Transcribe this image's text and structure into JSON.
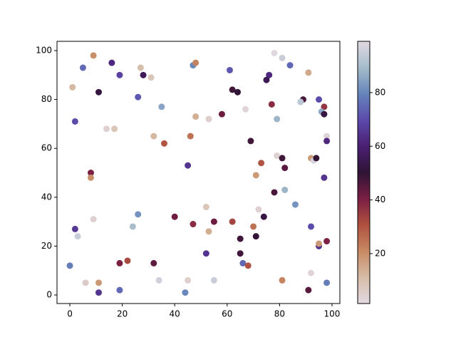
{
  "chart_data": {
    "type": "scatter",
    "x": [
      9,
      1,
      5,
      16,
      19,
      11,
      2,
      27,
      28,
      31,
      26,
      35,
      14,
      17,
      32,
      36,
      8,
      8,
      47,
      48,
      61,
      62,
      64,
      48,
      53,
      58,
      67,
      46,
      69,
      45,
      78,
      81,
      76,
      75,
      84,
      91,
      77,
      79,
      89,
      88,
      95,
      97,
      96,
      97,
      98,
      98,
      79,
      81,
      92,
      93,
      94,
      82,
      73,
      71,
      97,
      78,
      82,
      86,
      52,
      72,
      74,
      40,
      26,
      24,
      47,
      55,
      62,
      53,
      70,
      65,
      71,
      2,
      3,
      9,
      92,
      98,
      95,
      95,
      52,
      65,
      66,
      68,
      19,
      22,
      32,
      0,
      92,
      6,
      11,
      34,
      45,
      55,
      81,
      98,
      11,
      19,
      44,
      91
    ],
    "values": [
      98,
      85,
      93,
      95,
      90,
      83,
      71,
      93,
      90,
      89,
      81,
      77,
      68,
      68,
      65,
      62,
      50,
      48,
      94,
      95,
      92,
      84,
      83,
      73,
      72,
      74,
      76,
      65,
      63,
      53,
      99,
      97,
      90,
      88,
      94,
      91,
      78,
      72,
      80,
      79,
      80,
      77,
      75,
      74,
      65,
      63,
      57,
      56,
      56,
      55,
      56,
      52,
      54,
      49,
      48,
      42,
      43,
      37,
      36,
      35,
      32,
      32,
      33,
      28,
      29,
      30,
      30,
      26,
      28,
      23,
      24,
      27,
      24,
      31,
      28,
      22,
      20,
      21,
      17,
      17,
      13,
      12,
      13,
      14,
      13,
      12,
      9,
      5,
      5,
      6,
      6,
      6,
      6,
      5,
      1,
      2,
      1,
      2
    ],
    "c": [
      20,
      12,
      75,
      62,
      68,
      52,
      70,
      10,
      56,
      8,
      72,
      85,
      4,
      8,
      12,
      30,
      40,
      20,
      80,
      22,
      72,
      48,
      50,
      14,
      5,
      42,
      3,
      25,
      48,
      65,
      2,
      95,
      62,
      55,
      75,
      15,
      38,
      88,
      47,
      93,
      70,
      36,
      86,
      52,
      3,
      62,
      4,
      48,
      18,
      97,
      50,
      45,
      30,
      18,
      65,
      47,
      88,
      82,
      8,
      4,
      52,
      42,
      82,
      90,
      38,
      42,
      33,
      14,
      25,
      48,
      50,
      66,
      95,
      4,
      70,
      40,
      64,
      18,
      65,
      48,
      75,
      30,
      40,
      32,
      44,
      78,
      3,
      6,
      18,
      96,
      5,
      95,
      22,
      78,
      65,
      75,
      80,
      45
    ],
    "xlim": [
      -4.9,
      103
    ],
    "ylim": [
      -3.5,
      103.8
    ],
    "xticks": [
      0,
      20,
      40,
      60,
      80,
      100
    ],
    "yticks": [
      0,
      20,
      40,
      60,
      80,
      100
    ],
    "clim": [
      1.4,
      99.1
    ],
    "cticks": [
      20,
      40,
      60,
      80
    ],
    "colormap": [
      "#e2d9e2",
      "#d6bca6",
      "#c78a63",
      "#b0503f",
      "#7a1f44",
      "#2f1436",
      "#4a1f72",
      "#5c4aab",
      "#6585bb",
      "#a5bccb",
      "#e2d9e2"
    ]
  }
}
